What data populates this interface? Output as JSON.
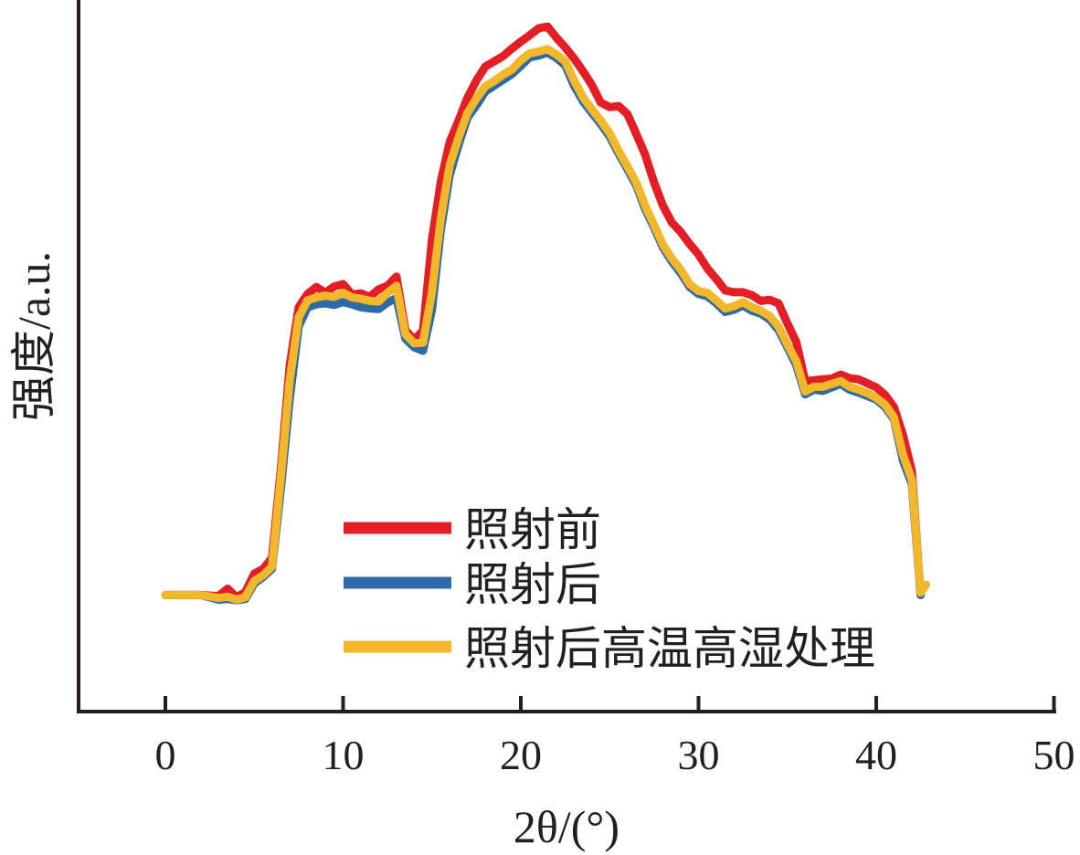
{
  "chart_data": {
    "type": "line",
    "title": "",
    "xlabel": "2θ/(°)",
    "ylabel": "强度/a.u.",
    "xlim": [
      -5,
      50
    ],
    "ylim": [
      0,
      100
    ],
    "x_ticks": [
      "0",
      "10",
      "20",
      "30",
      "40",
      "50"
    ],
    "y_ticks": [],
    "grid": false,
    "legend_position": "bottom-center",
    "series": [
      {
        "name": "照射前",
        "color": "#e31e24",
        "x": [
          0,
          1,
          2,
          3,
          3.5,
          4,
          4.5,
          5,
          5.5,
          6,
          6.5,
          7,
          7.5,
          8,
          8.5,
          9,
          9.5,
          10,
          10.5,
          11,
          11.5,
          12,
          12.5,
          13,
          13.5,
          14,
          14.5,
          15,
          15.5,
          16,
          16.5,
          17,
          17.5,
          18,
          18.5,
          19,
          19.5,
          20,
          20.5,
          21,
          21.5,
          22,
          22.5,
          23,
          23.5,
          24,
          24.5,
          25,
          25.5,
          26,
          26.5,
          27,
          27.5,
          28,
          28.5,
          29,
          29.5,
          30,
          30.5,
          31,
          31.5,
          32,
          32.5,
          33,
          33.5,
          34,
          34.5,
          35,
          35.5,
          36,
          36.5,
          37,
          37.5,
          38,
          38.5,
          39,
          39.5,
          40,
          40.5,
          41,
          41.5,
          42,
          42.5
        ],
        "values": [
          1.2,
          1.2,
          1.2,
          1.0,
          2.3,
          0.8,
          1.7,
          4.9,
          5.7,
          7.6,
          23.0,
          40.8,
          50.8,
          53.1,
          54.3,
          53.3,
          54.4,
          54.8,
          53.0,
          53.2,
          52.6,
          53.9,
          54.5,
          56.1,
          46.9,
          45.2,
          46.8,
          62.5,
          72.5,
          79.3,
          83.0,
          86.9,
          89.9,
          92.3,
          93.2,
          94.1,
          95.4,
          96.6,
          97.7,
          98.9,
          99.2,
          97.3,
          95.6,
          93.7,
          91.5,
          89.1,
          86.1,
          85.3,
          85.5,
          84.1,
          80.7,
          77.1,
          72.3,
          68.3,
          65.4,
          63.8,
          61.7,
          59.9,
          57.5,
          55.7,
          53.7,
          53.4,
          53.4,
          52.9,
          51.9,
          52.1,
          51.5,
          48.0,
          44.8,
          38.1,
          38.2,
          38.4,
          38.5,
          39.2,
          38.6,
          38.4,
          37.7,
          37.0,
          35.7,
          33.6,
          28.8,
          22.6,
          1.2
        ]
      },
      {
        "name": "照射后",
        "color": "#2f6aa8",
        "x": [
          0,
          1,
          2,
          3,
          3.5,
          4,
          4.5,
          5,
          5.5,
          6,
          6.5,
          7,
          7.5,
          8,
          8.5,
          9,
          9.5,
          10,
          10.5,
          11,
          11.5,
          12,
          12.5,
          13,
          13.5,
          14,
          14.5,
          15,
          15.5,
          16,
          16.5,
          17,
          17.5,
          18,
          18.5,
          19,
          19.5,
          20,
          20.5,
          21,
          21.5,
          22,
          22.5,
          23,
          23.5,
          24,
          24.5,
          25,
          25.5,
          26,
          26.5,
          27,
          27.5,
          28,
          28.5,
          29,
          29.5,
          30,
          30.5,
          31,
          31.5,
          32,
          32.5,
          33,
          33.5,
          34,
          34.5,
          35,
          35.5,
          36,
          36.5,
          37,
          37.5,
          38,
          38.5,
          39,
          39.5,
          40,
          40.5,
          41,
          41.5,
          42,
          42.5
        ],
        "values": [
          1.2,
          1.2,
          1.2,
          0.4,
          0.5,
          0.3,
          0.5,
          3.2,
          4.3,
          5.7,
          19.5,
          35.0,
          47.5,
          50.8,
          51.3,
          51.5,
          51.2,
          51.7,
          51.3,
          50.8,
          50.6,
          50.5,
          51.6,
          52.4,
          45.4,
          43.9,
          43.3,
          50.4,
          64.2,
          73.6,
          78.8,
          83.5,
          85.6,
          88.0,
          89.0,
          90.0,
          91.0,
          92.4,
          93.9,
          94.2,
          94.7,
          93.8,
          92.5,
          89.0,
          86.3,
          84.3,
          82.4,
          80.2,
          77.3,
          74.6,
          71.8,
          67.7,
          64.5,
          61.1,
          58.7,
          56.7,
          54.3,
          53.1,
          52.7,
          51.5,
          50.0,
          50.4,
          51.1,
          50.2,
          49.7,
          48.7,
          46.9,
          43.9,
          40.8,
          35.8,
          36.6,
          36.4,
          37.0,
          37.6,
          36.6,
          36.1,
          35.5,
          34.9,
          33.6,
          31.5,
          24.4,
          20.3,
          1.2
        ]
      },
      {
        "name": "照射后高温高湿处理",
        "color": "#f0b82a",
        "x": [
          0,
          1,
          2,
          3,
          3.5,
          4,
          4.5,
          5,
          5.5,
          6,
          6.5,
          7,
          7.5,
          8,
          8.5,
          9,
          9.5,
          10,
          10.5,
          11,
          11.5,
          12,
          12.5,
          13,
          13.5,
          14,
          14.5,
          15,
          15.5,
          16,
          16.5,
          17,
          17.5,
          18,
          18.5,
          19,
          19.5,
          20,
          20.5,
          21,
          21.5,
          22,
          22.5,
          23,
          23.5,
          24,
          24.5,
          25,
          25.5,
          26,
          26.5,
          27,
          27.5,
          28,
          28.5,
          29,
          29.5,
          30,
          30.5,
          31,
          31.5,
          32,
          32.5,
          33,
          33.5,
          34,
          34.5,
          35,
          35.5,
          36,
          36.5,
          37,
          37.5,
          38,
          38.5,
          39,
          39.5,
          40,
          40.5,
          41,
          41.5,
          42,
          42.5,
          42.8
        ],
        "values": [
          1.2,
          1.2,
          1.2,
          0.7,
          0.9,
          0.4,
          0.8,
          3.6,
          4.6,
          6.1,
          21.6,
          38.2,
          49.1,
          52.0,
          52.5,
          52.8,
          52.6,
          53.3,
          52.5,
          52.3,
          51.9,
          51.8,
          53.3,
          54.5,
          46.2,
          44.6,
          44.7,
          53.5,
          66.2,
          75.3,
          80.1,
          84.3,
          86.8,
          88.9,
          89.8,
          90.9,
          91.8,
          93.4,
          94.6,
          94.9,
          95.3,
          94.4,
          93.2,
          89.9,
          87.0,
          84.9,
          83.0,
          80.8,
          77.8,
          75.1,
          72.3,
          68.3,
          65.0,
          61.6,
          59.2,
          57.3,
          54.8,
          53.6,
          53.3,
          52.0,
          50.6,
          51.0,
          51.7,
          50.8,
          50.2,
          49.3,
          47.5,
          44.4,
          41.5,
          36.3,
          37.1,
          37.1,
          37.6,
          38.1,
          37.1,
          36.6,
          36.0,
          35.2,
          34.0,
          31.8,
          25.4,
          21.1,
          1.6,
          3.0
        ]
      }
    ]
  }
}
